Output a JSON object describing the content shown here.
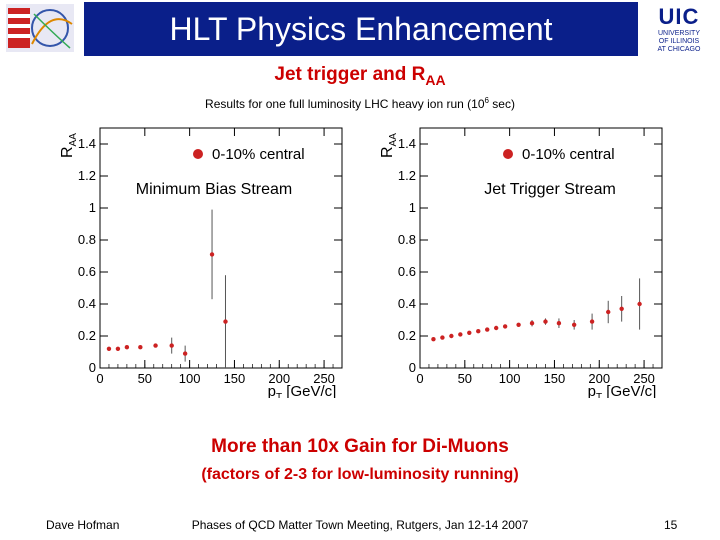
{
  "header": {
    "title": "HLT Physics Enhancement"
  },
  "logo_right": {
    "big": "UIC",
    "line1": "UNIVERSITY",
    "line2": "OF ILLINOIS",
    "line3": "AT CHICAGO"
  },
  "slide": {
    "title_main": "Jet trigger and R",
    "title_sub": "AA",
    "results_text": "Results for one full luminosity LHC heavy ion run (10",
    "results_sup": "6",
    "results_end": " sec)",
    "gain": "More than 10x Gain for Di-Muons",
    "factors": "(factors of 2-3 for low-luminosity running)"
  },
  "footer": {
    "author": "Dave Hofman",
    "meeting": "Phases of QCD Matter Town Meeting, Rutgers, Jan 12-14 2007",
    "page": "15"
  },
  "colors": {
    "header_bg": "#0a1f8a",
    "accent_red": "#cc0000",
    "marker": "#cc2222"
  },
  "chart_data": [
    {
      "type": "scatter",
      "ylabel_main": "R",
      "ylabel_sub": "AA",
      "xlabel_main": "p",
      "xlabel_sub": "T",
      "xlabel_unit": "[GeV/c]",
      "xlim": [
        0,
        270
      ],
      "ylim": [
        0,
        1.5
      ],
      "xticks": [
        0,
        50,
        100,
        150,
        200,
        250
      ],
      "yticks": [
        0,
        0.2,
        0.4,
        0.6,
        0.8,
        1,
        1.2,
        1.4
      ],
      "xtick_labels": [
        "0",
        "50",
        "100",
        "150",
        "200",
        "250"
      ],
      "ytick_labels": [
        "0",
        "0.2",
        "0.4",
        "0.6",
        "0.8",
        "1",
        "1.2",
        "1.4"
      ],
      "legend": "0-10% central",
      "annotation": "Minimum Bias Stream",
      "series": [
        {
          "x": [
            10,
            20,
            30,
            45,
            62,
            80,
            95,
            125,
            140
          ],
          "y": [
            0.12,
            0.12,
            0.13,
            0.13,
            0.14,
            0.14,
            0.09,
            0.71,
            0.29
          ],
          "err": [
            0.01,
            0.01,
            0.01,
            0.01,
            0.01,
            0.05,
            0.05,
            0.28,
            0.29
          ]
        }
      ]
    },
    {
      "type": "scatter",
      "ylabel_main": "R",
      "ylabel_sub": "AA",
      "xlabel_main": "p",
      "xlabel_sub": "T",
      "xlabel_unit": "[GeV/c]",
      "xlim": [
        0,
        270
      ],
      "ylim": [
        0,
        1.5
      ],
      "xticks": [
        0,
        50,
        100,
        150,
        200,
        250
      ],
      "yticks": [
        0,
        0.2,
        0.4,
        0.6,
        0.8,
        1,
        1.2,
        1.4
      ],
      "xtick_labels": [
        "0",
        "50",
        "100",
        "150",
        "200",
        "250"
      ],
      "ytick_labels": [
        "0",
        "0.2",
        "0.4",
        "0.6",
        "0.8",
        "1",
        "1.2",
        "1.4"
      ],
      "legend": "0-10% central",
      "annotation": "Jet Trigger Stream",
      "series": [
        {
          "x": [
            15,
            25,
            35,
            45,
            55,
            65,
            75,
            85,
            95,
            110,
            125,
            140,
            155,
            172,
            192,
            210,
            225,
            245
          ],
          "y": [
            0.18,
            0.19,
            0.2,
            0.21,
            0.22,
            0.23,
            0.24,
            0.25,
            0.26,
            0.27,
            0.28,
            0.29,
            0.28,
            0.27,
            0.29,
            0.35,
            0.37,
            0.4
          ],
          "err": [
            0.01,
            0.01,
            0.01,
            0.01,
            0.01,
            0.01,
            0.01,
            0.01,
            0.01,
            0.01,
            0.02,
            0.02,
            0.03,
            0.03,
            0.05,
            0.07,
            0.08,
            0.16
          ]
        }
      ]
    }
  ]
}
